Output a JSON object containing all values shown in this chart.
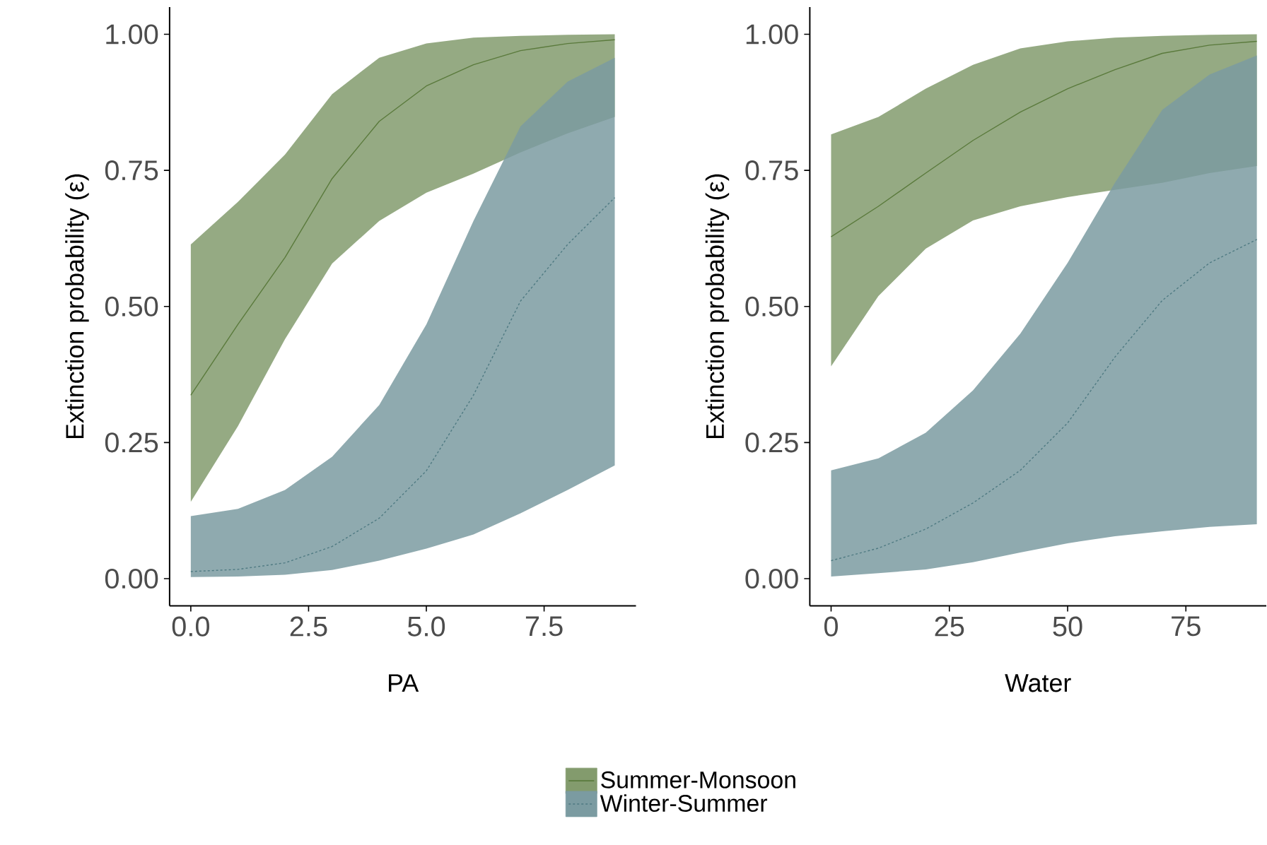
{
  "chart_data": [
    {
      "type": "line",
      "xlabel": "PA",
      "ylabel": "Extinction probability  (ε)",
      "x": [
        0,
        1,
        2,
        3,
        4,
        5,
        6,
        7,
        8,
        9
      ],
      "xlim": [
        -0.45,
        9.45
      ],
      "ylim": [
        -0.05,
        1.05
      ],
      "xticks": [
        {
          "value": 0,
          "label": "0.0"
        },
        {
          "value": 2.5,
          "label": "2.5"
        },
        {
          "value": 5,
          "label": "5.0"
        },
        {
          "value": 7.5,
          "label": "7.5"
        }
      ],
      "yticks": [
        {
          "value": 0,
          "label": "0.00"
        },
        {
          "value": 0.25,
          "label": "0.25"
        },
        {
          "value": 0.5,
          "label": "0.50"
        },
        {
          "value": 0.75,
          "label": "0.75"
        },
        {
          "value": 1,
          "label": "1.00"
        }
      ],
      "legend": "bottom",
      "marker": "none",
      "series": [
        {
          "name": "Summer-Monsoon",
          "color": "#5a7a3c",
          "line_style": "solid",
          "values": [
            0.337,
            0.467,
            0.59,
            0.735,
            0.84,
            0.905,
            0.944,
            0.97,
            0.983,
            0.99
          ],
          "lower": [
            0.141,
            0.28,
            0.44,
            0.579,
            0.657,
            0.709,
            0.744,
            0.783,
            0.818,
            0.848
          ],
          "upper": [
            0.614,
            0.692,
            0.779,
            0.89,
            0.957,
            0.983,
            0.994,
            0.997,
            0.999,
            1.0
          ]
        },
        {
          "name": "Winter-Summer",
          "color": "#4f7a82",
          "line_style": "dotted",
          "values": [
            0.013,
            0.017,
            0.029,
            0.059,
            0.111,
            0.198,
            0.337,
            0.51,
            0.614,
            0.7
          ],
          "lower": [
            0.003,
            0.004,
            0.007,
            0.016,
            0.033,
            0.055,
            0.081,
            0.12,
            0.163,
            0.208
          ],
          "upper": [
            0.115,
            0.128,
            0.163,
            0.224,
            0.319,
            0.467,
            0.657,
            0.831,
            0.913,
            0.957
          ]
        }
      ]
    },
    {
      "type": "line",
      "xlabel": "Water",
      "ylabel": "Extinction probability  (ε)",
      "x": [
        0,
        10,
        20,
        30,
        40,
        50,
        60,
        70,
        80,
        90
      ],
      "xlim": [
        -4.5,
        92
      ],
      "ylim": [
        -0.05,
        1.05
      ],
      "xticks": [
        0,
        25,
        50,
        75
      ],
      "yticks": [
        {
          "value": 0,
          "label": "0.00"
        },
        {
          "value": 0.25,
          "label": "0.25"
        },
        {
          "value": 0.5,
          "label": "0.50"
        },
        {
          "value": 0.75,
          "label": "0.75"
        },
        {
          "value": 1,
          "label": "1.00"
        }
      ],
      "marker": "none",
      "series": [
        {
          "color": "#5a7a3c",
          "line_style": "solid",
          "values": [
            0.628,
            0.684,
            0.745,
            0.805,
            0.857,
            0.9,
            0.935,
            0.965,
            0.98,
            0.987
          ],
          "lower": [
            0.39,
            0.519,
            0.606,
            0.658,
            0.684,
            0.701,
            0.714,
            0.727,
            0.745,
            0.758
          ],
          "upper": [
            0.816,
            0.848,
            0.9,
            0.944,
            0.974,
            0.987,
            0.994,
            0.997,
            0.999,
            1.0
          ]
        },
        {
          "color": "#4f7a82",
          "line_style": "dotted",
          "values": [
            0.033,
            0.056,
            0.091,
            0.139,
            0.199,
            0.286,
            0.407,
            0.511,
            0.58,
            0.623
          ],
          "lower": [
            0.004,
            0.01,
            0.017,
            0.03,
            0.048,
            0.065,
            0.078,
            0.087,
            0.095,
            0.1
          ],
          "upper": [
            0.199,
            0.221,
            0.268,
            0.346,
            0.45,
            0.58,
            0.727,
            0.861,
            0.926,
            0.961
          ]
        }
      ]
    }
  ]
}
